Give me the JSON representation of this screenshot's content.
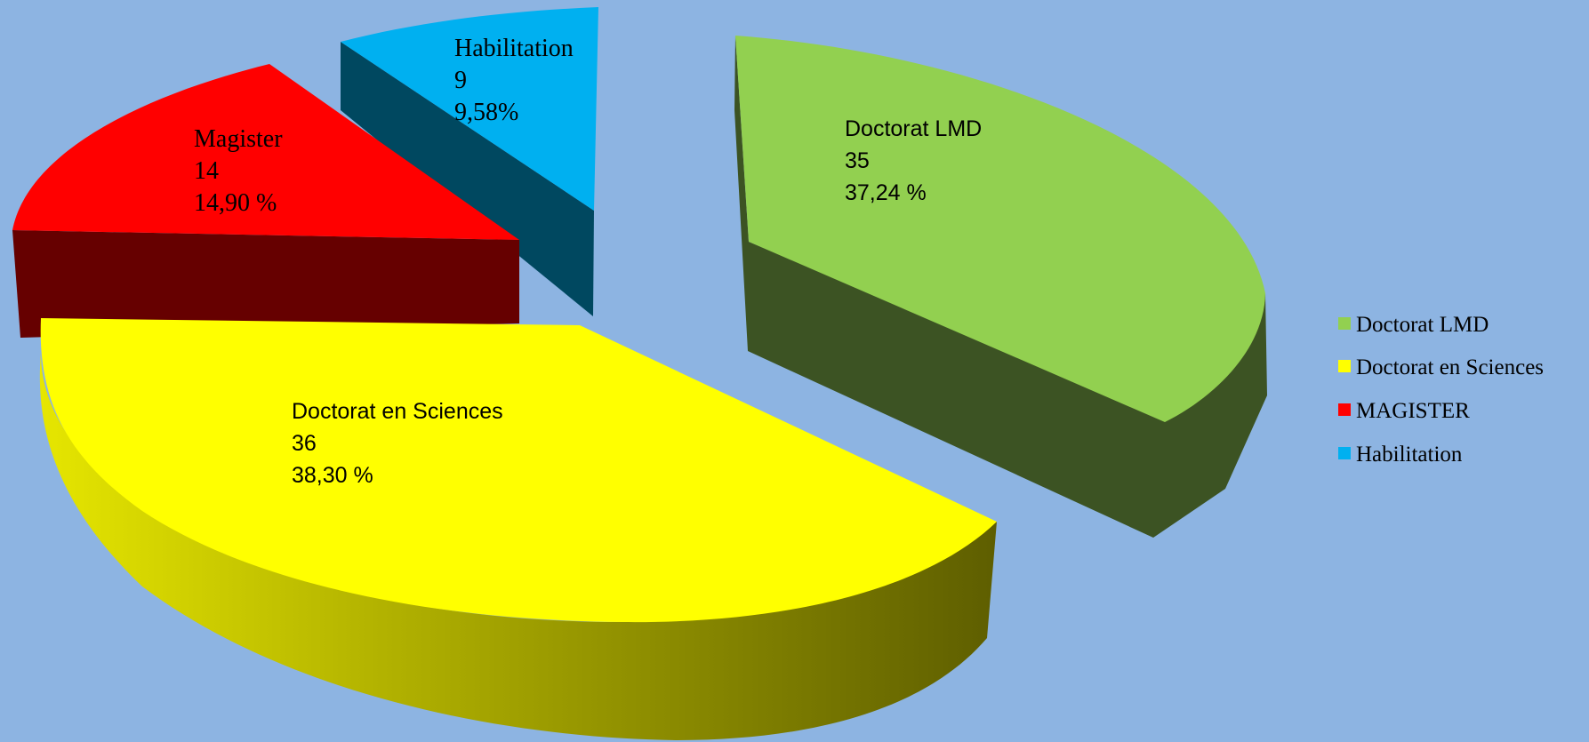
{
  "chart_data": {
    "type": "pie",
    "variant": "3d-exploded",
    "legend_position": "right",
    "slices": [
      {
        "label": "Doctorat LMD",
        "legend": "Doctorat LMD",
        "value": 35,
        "percent": "37,24 %",
        "color": "#92d050",
        "side_color": "#3c5323"
      },
      {
        "label": "Doctorat en Sciences",
        "legend": "Doctorat en Sciences",
        "value": 36,
        "percent": "38,30 %",
        "color": "#ffff00",
        "side_color": "#6b6b00"
      },
      {
        "label": "Magister",
        "legend": "MAGISTER",
        "value": 14,
        "percent": "14,90 %",
        "color": "#ff0000",
        "side_color": "#660000"
      },
      {
        "label": "Habilitation",
        "legend": "Habilitation",
        "value": 9,
        "percent": "9,58%",
        "color": "#00b0f0",
        "side_color": "#004860"
      }
    ]
  }
}
